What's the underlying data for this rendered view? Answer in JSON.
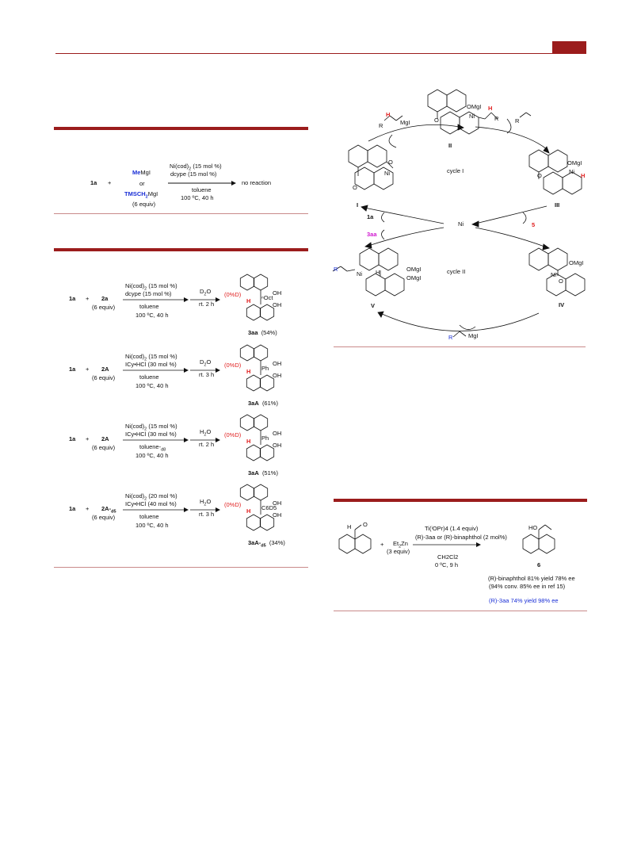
{
  "colors": {
    "accent": "#9b1c1c",
    "red": "#e02020",
    "blue": "#1a2fd6",
    "magenta": "#d01ad0"
  },
  "scheme_a": {
    "substrate": "1a",
    "plus": "+",
    "reagent_me": "Me",
    "reagent_me_suffix": "MgI",
    "or": "or",
    "reagent_tms": "TMSCH",
    "reagent_tms_sub": "2",
    "reagent_tms_suffix": "MgI",
    "equiv": "(6 equiv)",
    "cond_top1": "Ni(cod)",
    "cond_top1_sub": "2",
    "cond_top1_tail": " (15 mol %)",
    "cond_top2": "dcype (15 mol %)",
    "cond_bottom1": "toluene",
    "cond_bottom2": "100 ºC, 40 h",
    "result": "no reaction"
  },
  "scheme_b": [
    {
      "substrate": "1a",
      "plus": "+",
      "reagent": "2a",
      "reagent_sub": "",
      "equiv": "(6 equiv)",
      "c1": "Ni(cod)",
      "c1_sub": "2",
      "c1_tail": " (15 mol %)",
      "c2": "dcype (15 mol %)",
      "c3": "toluene",
      "c3_sub": "",
      "c4": "100 ºC, 40 h",
      "q1": "D",
      "q1_sub": "2",
      "q1_tail": "O",
      "q2": "rt. 2 h",
      "dlabel": "(0%D)",
      "h": "H",
      "sub_label": "ⁿOct",
      "oh1": "OH",
      "oh2": "OH",
      "product": "3aa",
      "product_sub": "",
      "yield": "(54%)"
    },
    {
      "substrate": "1a",
      "plus": "+",
      "reagent": "2A",
      "reagent_sub": "",
      "equiv": "(6 equiv)",
      "c1": "Ni(cod)",
      "c1_sub": "2",
      "c1_tail": " (15 mol %)",
      "c2": "ICy•HCl (30 mol %)",
      "c3": "toluene",
      "c3_sub": "",
      "c4": "100 ºC, 40 h",
      "q1": "D",
      "q1_sub": "2",
      "q1_tail": "O",
      "q2": "rt. 3 h",
      "dlabel": "(0%D)",
      "h": "H",
      "sub_label": "Ph",
      "oh1": "OH",
      "oh2": "OH",
      "product": "3aA",
      "product_sub": "",
      "yield": "(61%)"
    },
    {
      "substrate": "1a",
      "plus": "+",
      "reagent": "2A",
      "reagent_sub": "",
      "equiv": "(6 equiv)",
      "c1": "Ni(cod)",
      "c1_sub": "2",
      "c1_tail": " (15 mol %)",
      "c2": "ICy•HCl (30 mol %)",
      "c3": "toluene-",
      "c3_sub": "d8",
      "c4": "100 ºC, 40 h",
      "q1": "H",
      "q1_sub": "2",
      "q1_tail": "O",
      "q2": "rt. 2 h",
      "dlabel": "(0%D)",
      "h": "H",
      "sub_label": "Ph",
      "oh1": "OH",
      "oh2": "OH",
      "product": "3aA",
      "product_sub": "",
      "yield": "(51%)"
    },
    {
      "substrate": "1a",
      "plus": "+",
      "reagent": "2A-",
      "reagent_sub": "d5",
      "equiv": "(6 equiv)",
      "c1": "Ni(cod)",
      "c1_sub": "2",
      "c1_tail": " (20 mol %)",
      "c2": "ICy•HCl (40 mol %)",
      "c3": "toluene",
      "c3_sub": "",
      "c4": "100 ºC, 40 h",
      "q1": "H",
      "q1_sub": "2",
      "q1_tail": "O",
      "q2": "rt. 3 h",
      "dlabel": "(0%D)",
      "h": "H",
      "sub_label": "C6D5",
      "oh1": "OH",
      "oh2": "OH",
      "product": "3aA-",
      "product_sub": "d5",
      "yield": "(34%)"
    }
  ],
  "cycle": {
    "center": "Ni",
    "cycle1": "cycle I",
    "cycle2": "cycle II",
    "I": "I",
    "II": "II",
    "III": "III",
    "IV": "IV",
    "V": "V",
    "omgi": "OMgI",
    "o": "O",
    "ni": "Ni",
    "h": "H",
    "r": "R",
    "mgi": "MgI",
    "label_1a": "1a",
    "label_3aa": "3aa",
    "label_5": "5"
  },
  "scheme_c": {
    "aldehyde_h": "H",
    "aldehyde_o": "O",
    "plus": "+",
    "reagent": "Et",
    "reagent_sub": "2",
    "reagent_tail": "Zn",
    "reagent_equiv": "(3 equiv)",
    "cond1": "Ti(ⁱOPr)4 (1.4 equiv)",
    "cond2": "(R)-3aa or (R)-binaphthol (2 mol%)",
    "cond3": "CH2Cl2",
    "cond4": "0 ºC, 9 h",
    "product_ho": "HO",
    "product": "6",
    "result1": "(R)-binaphthol  81% yield 78% ee",
    "result2": "(94% conv. 85% ee in ref 15)",
    "result3": "(R)-3aa  74% yield 98% ee"
  }
}
